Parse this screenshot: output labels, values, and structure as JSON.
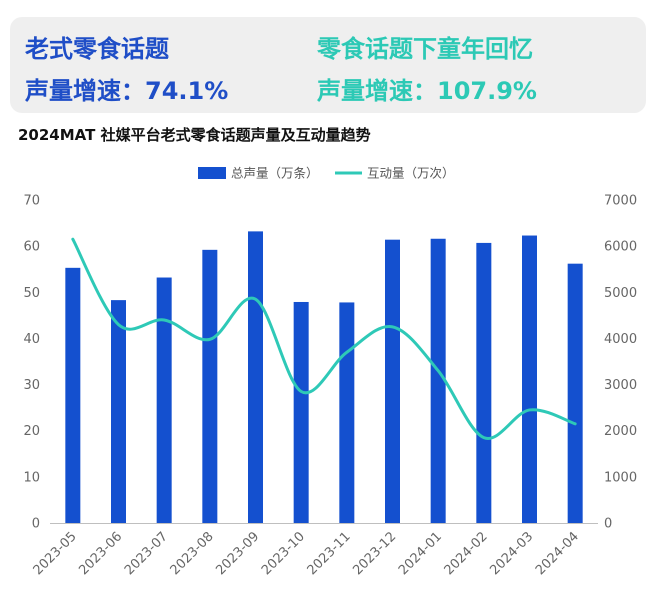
{
  "kpis": [
    {
      "title": "老式零食话题",
      "metric": "声量增速：74.1%",
      "color": "#1f4ec7"
    },
    {
      "title": "零食话题下童年回忆",
      "metric": "声量增速：107.9%",
      "color": "#2cc9b5"
    }
  ],
  "chart_title": "2024MAT 社媒平台老式零食话题声量及互动量趋势",
  "chart_data": {
    "type": "bar",
    "categories": [
      "2023-05",
      "2023-06",
      "2023-07",
      "2023-08",
      "2023-09",
      "2023-10",
      "2023-11",
      "2023-12",
      "2024-01",
      "2024-02",
      "2024-03",
      "2024-04"
    ],
    "series": [
      {
        "name": "总声量（万条）",
        "type": "bar",
        "axis": "left",
        "color": "#1450cf",
        "values": [
          55.3,
          48.3,
          53.2,
          59.2,
          63.2,
          47.9,
          47.8,
          61.4,
          61.6,
          60.7,
          62.3,
          56.2
        ]
      },
      {
        "name": "互动量（万次）",
        "type": "line",
        "axis": "right",
        "color": "#2ec9b7",
        "values": [
          6150,
          4300,
          4400,
          3980,
          4850,
          2850,
          3700,
          4250,
          3300,
          1850,
          2450,
          2150
        ]
      }
    ],
    "y_left": {
      "min": 0,
      "max": 70,
      "ticks": [
        0,
        10,
        20,
        30,
        40,
        50,
        60,
        70
      ]
    },
    "y_right": {
      "min": 0,
      "max": 7000,
      "ticks": [
        0,
        1000,
        2000,
        3000,
        4000,
        5000,
        6000,
        7000
      ]
    },
    "grid": false,
    "legend_position": "top-center"
  }
}
